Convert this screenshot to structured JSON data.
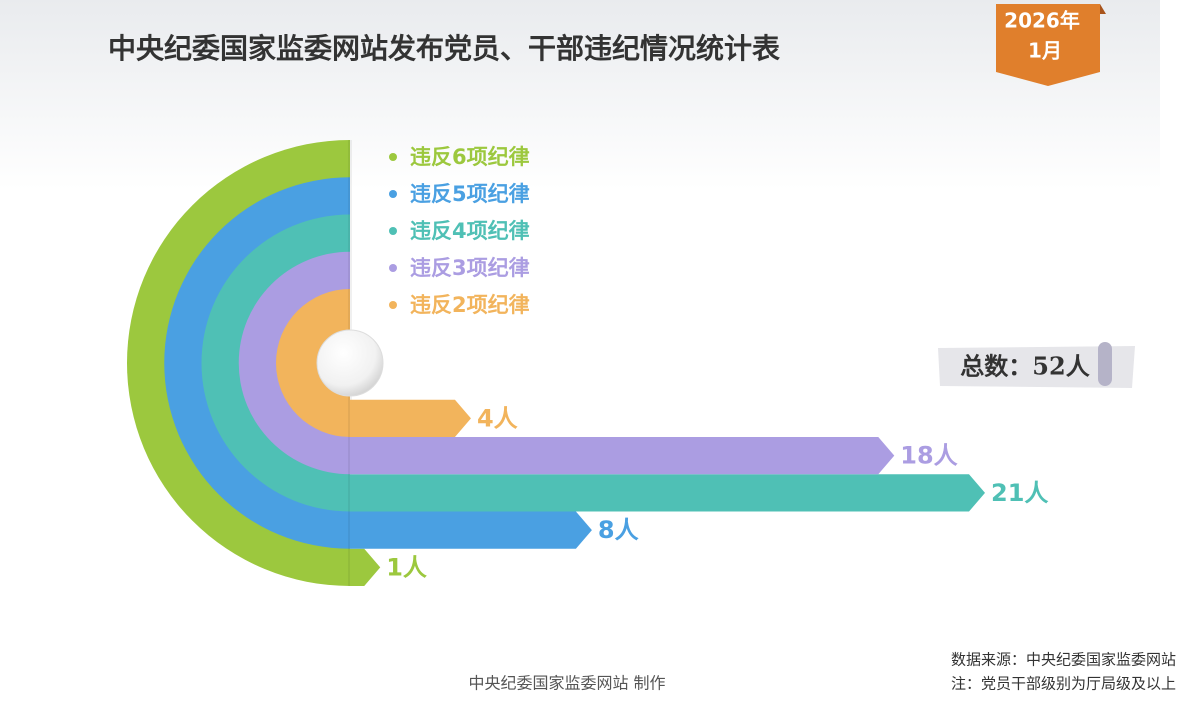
{
  "chart_data": {
    "type": "bar",
    "title": "中央纪委国家监委网站发布党员、干部违纪情况统计表",
    "badge_year": "2026年",
    "badge_month": "1月",
    "total_label": "总数：52人",
    "categories": [
      "违反6项纪律",
      "违反5项纪律",
      "违反4项纪律",
      "违反3项纪律",
      "违反2项纪律"
    ],
    "colors": [
      "#9cc83e",
      "#4aa0e2",
      "#4fc0b5",
      "#ab9de2",
      "#f2b45c"
    ],
    "values": [
      1,
      8,
      21,
      18,
      4
    ],
    "value_labels": [
      "1人",
      "8人",
      "21人",
      "18人",
      "4人"
    ]
  },
  "footer": {
    "credit": "中央纪委国家监委网站 制作",
    "source": "数据来源：中央纪委国家监委网站",
    "note": "注：党员干部级别为厅局级及以上"
  }
}
